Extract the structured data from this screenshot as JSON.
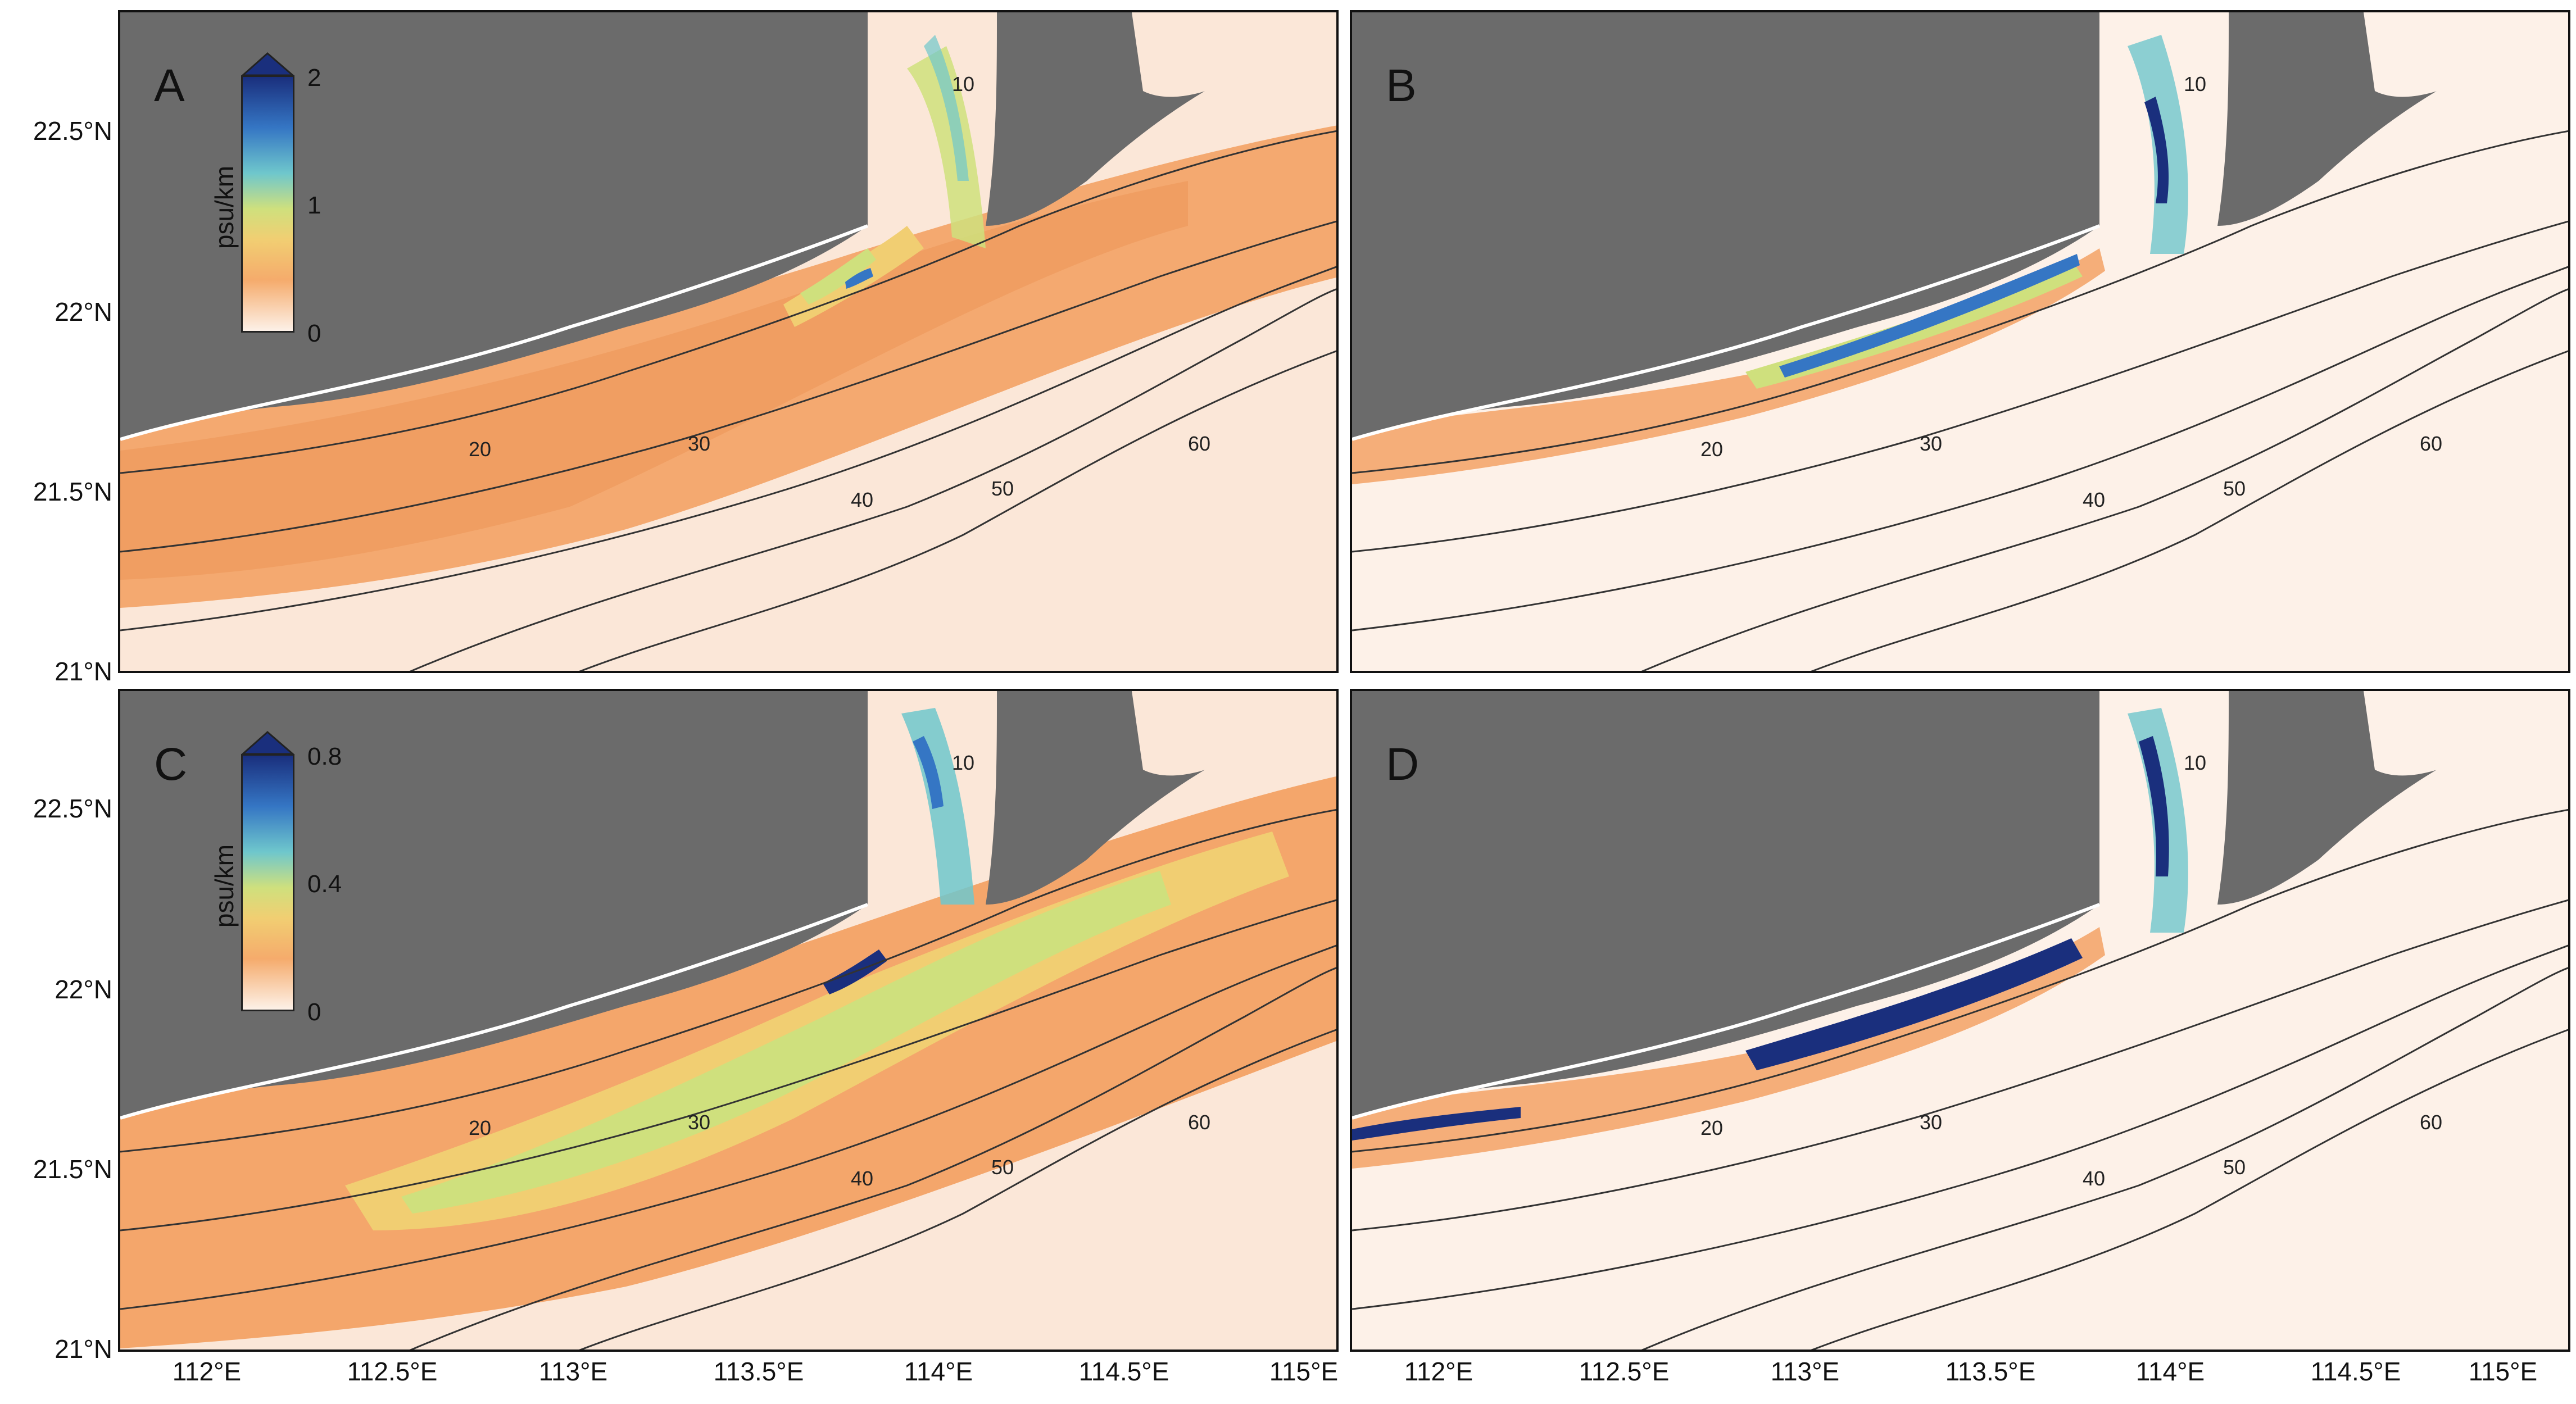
{
  "panels": [
    {
      "letter": "A",
      "colorbar": {
        "title": "psu/km",
        "ticks": [
          "2",
          "1",
          "0"
        ]
      }
    },
    {
      "letter": "B"
    },
    {
      "letter": "C",
      "colorbar": {
        "title": "psu/km",
        "ticks": [
          "0.8",
          "0.4",
          "0"
        ]
      }
    },
    {
      "letter": "D"
    }
  ],
  "axes": {
    "y_labels": [
      "22.5°N",
      "22°N",
      "21.5°N",
      "21°N"
    ],
    "x_labels": [
      "112°E",
      "112.5°E",
      "113°E",
      "113.5°E",
      "114°E",
      "114.5°E",
      "115°E"
    ]
  },
  "contour_levels": [
    "10",
    "20",
    "30",
    "40",
    "50",
    "60"
  ],
  "colors": {
    "land": "#6b6b6b",
    "colormap": [
      "#fdf1e8",
      "#f5ab6c",
      "#f1ce72",
      "#cfe07d",
      "#6fc7cc",
      "#3576c4",
      "#1a2f7d"
    ]
  }
}
